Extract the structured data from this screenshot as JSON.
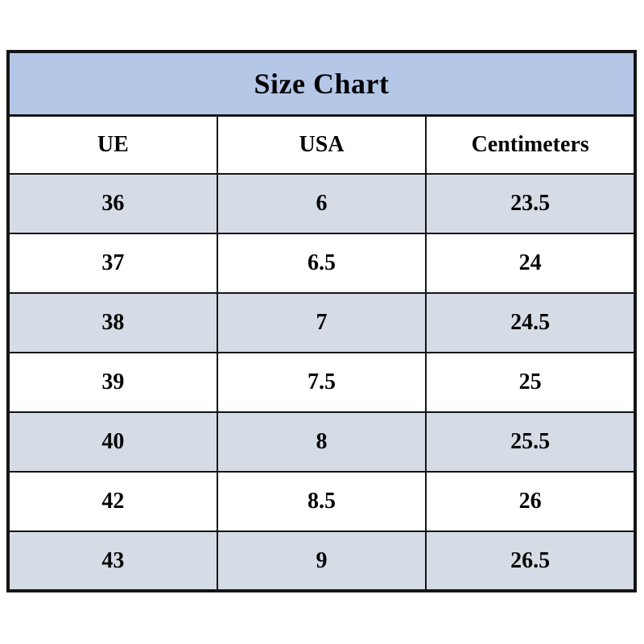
{
  "title": "Size Chart",
  "columns": {
    "c1": "UE",
    "c2": "USA",
    "c3": "Centimeters"
  },
  "rows": [
    {
      "ue": "36",
      "usa": "6",
      "cm": "23.5"
    },
    {
      "ue": "37",
      "usa": "6.5",
      "cm": "24"
    },
    {
      "ue": "38",
      "usa": "7",
      "cm": "24.5"
    },
    {
      "ue": "39",
      "usa": "7.5",
      "cm": "25"
    },
    {
      "ue": "40",
      "usa": "8",
      "cm": "25.5"
    },
    {
      "ue": "42",
      "usa": "8.5",
      "cm": "26"
    },
    {
      "ue": "43",
      "usa": "9",
      "cm": "26.5"
    }
  ],
  "colors": {
    "title_band": "#b4c7e7",
    "shaded_row": "#d6dce5",
    "plain_row": "#ffffff",
    "border": "#141414",
    "text": "#050505"
  },
  "chart_data": {
    "type": "table",
    "title": "Size Chart",
    "columns": [
      "UE",
      "USA",
      "Centimeters"
    ],
    "rows": [
      [
        "36",
        "6",
        "23.5"
      ],
      [
        "37",
        "6.5",
        "24"
      ],
      [
        "38",
        "7",
        "24.5"
      ],
      [
        "39",
        "7.5",
        "25"
      ],
      [
        "40",
        "8",
        "25.5"
      ],
      [
        "42",
        "8.5",
        "26"
      ],
      [
        "43",
        "9",
        "26.5"
      ]
    ],
    "layout_hints": {
      "title_band_color": "#b4c7e7",
      "alternating_row_shading": "#d6dce5",
      "shaded_rows_indices": [
        0,
        2,
        4,
        6
      ],
      "grid": true,
      "text_style": "bold serif, centered"
    }
  }
}
